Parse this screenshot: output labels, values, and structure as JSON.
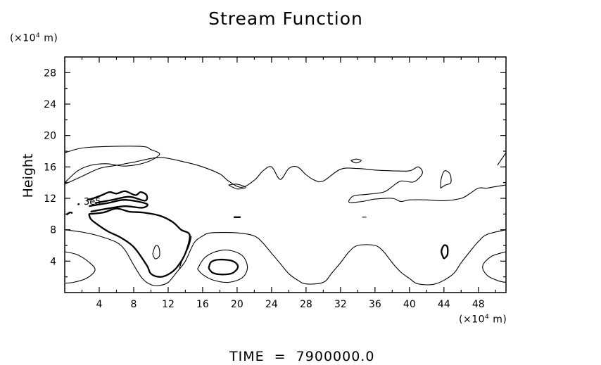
{
  "chart_data": {
    "type": "contour",
    "title": "Stream Function",
    "ylabel": "Height",
    "xlabel": "",
    "x_unit": {
      "prefix": "(×10",
      "exp": "4",
      "suffix": " m)"
    },
    "y_unit": {
      "prefix": "(×10",
      "exp": "4",
      "suffix": " m)"
    },
    "xlim": [
      0,
      51.2
    ],
    "ylim": [
      0,
      30
    ],
    "x_ticks": [
      4,
      8,
      12,
      16,
      20,
      24,
      28,
      32,
      36,
      40,
      44,
      48
    ],
    "y_ticks": [
      4,
      8,
      12,
      16,
      20,
      24,
      28
    ],
    "contour_label": "3e5",
    "contours": [
      {
        "bold": false,
        "points": [
          [
            0,
            17.8
          ],
          [
            2,
            18.4
          ],
          [
            5,
            18.6
          ],
          [
            9,
            18.6
          ],
          [
            10,
            18.2
          ],
          [
            11,
            17.6
          ],
          [
            9.5,
            16.6
          ],
          [
            7,
            16.1
          ],
          [
            5,
            16.4
          ],
          [
            3,
            16.2
          ],
          [
            1.5,
            15.5
          ],
          [
            0,
            14.0
          ]
        ]
      },
      {
        "bold": false,
        "points": [
          [
            0,
            13.8
          ],
          [
            2,
            14.8
          ],
          [
            4,
            15.8
          ],
          [
            6,
            16.2
          ],
          [
            8,
            16.6
          ],
          [
            11,
            17.2
          ],
          [
            14,
            16.6
          ],
          [
            16,
            16.0
          ],
          [
            18,
            15.1
          ],
          [
            19,
            14.2
          ],
          [
            20.5,
            13.4
          ],
          [
            22,
            14.3
          ],
          [
            23,
            15.5
          ],
          [
            24,
            16.0
          ],
          [
            25,
            14.4
          ],
          [
            26,
            15.8
          ],
          [
            27,
            16.0
          ],
          [
            28,
            15.0
          ],
          [
            29,
            14.3
          ],
          [
            30,
            14.2
          ],
          [
            32,
            15.7
          ],
          [
            34,
            15.8
          ],
          [
            36,
            15.6
          ],
          [
            38,
            15.5
          ],
          [
            40,
            15.5
          ],
          [
            41,
            16.0
          ],
          [
            41.5,
            15.2
          ],
          [
            40.5,
            14.1
          ],
          [
            39,
            14.2
          ],
          [
            38,
            13.5
          ],
          [
            37,
            12.8
          ],
          [
            35,
            12.5
          ],
          [
            33.5,
            12.3
          ],
          [
            33,
            11.5
          ],
          [
            34.5,
            11.6
          ],
          [
            36,
            11.9
          ],
          [
            38,
            12.0
          ],
          [
            39,
            11.6
          ],
          [
            40,
            11.8
          ],
          [
            42,
            11.8
          ],
          [
            44,
            11.7
          ],
          [
            46,
            12.0
          ],
          [
            47,
            12.6
          ],
          [
            48,
            13.3
          ],
          [
            49,
            13.3
          ],
          [
            50,
            13.5
          ],
          [
            51.2,
            13.7
          ]
        ]
      },
      {
        "bold": false,
        "points": [
          [
            19,
            13.7
          ],
          [
            20,
            13.2
          ],
          [
            21,
            13.4
          ],
          [
            20,
            13.8
          ],
          [
            19,
            13.7
          ]
        ]
      },
      {
        "bold": false,
        "points": [
          [
            33.2,
            16.8
          ],
          [
            33.8,
            16.5
          ],
          [
            34.4,
            16.8
          ],
          [
            33.8,
            17.0
          ],
          [
            33.2,
            16.8
          ]
        ]
      },
      {
        "bold": false,
        "points": [
          [
            43.6,
            13.3
          ],
          [
            43.7,
            14.6
          ],
          [
            44.1,
            15.5
          ],
          [
            44.7,
            15.1
          ],
          [
            44.8,
            14.0
          ],
          [
            44.2,
            13.7
          ],
          [
            43.6,
            13.3
          ]
        ]
      },
      {
        "bold": false,
        "points": [
          [
            50.2,
            16.2
          ],
          [
            51.2,
            17.8
          ]
        ]
      },
      {
        "bold": true,
        "points": [
          [
            3.5,
            11.4
          ],
          [
            5.5,
            11.8
          ],
          [
            7.5,
            12.2
          ],
          [
            9.3,
            11.7
          ],
          [
            9.5,
            12.4
          ],
          [
            8.8,
            12.8
          ],
          [
            8.2,
            12.4
          ],
          [
            7.0,
            12.9
          ],
          [
            6.0,
            12.6
          ],
          [
            5.2,
            12.8
          ],
          [
            4.3,
            12.4
          ],
          [
            3.3,
            12.0
          ],
          [
            2.6,
            11.8
          ]
        ]
      },
      {
        "bold": true,
        "points": [
          [
            2.8,
            11.0
          ],
          [
            5,
            11.4
          ],
          [
            7,
            11.8
          ],
          [
            9.5,
            11.3
          ],
          [
            9,
            10.8
          ],
          [
            7,
            11.0
          ],
          [
            5,
            10.7
          ],
          [
            3,
            10.3
          ]
        ]
      },
      {
        "bold": true,
        "points": [
          [
            2.8,
            10.0
          ],
          [
            4.5,
            10.2
          ],
          [
            6,
            10.7
          ],
          [
            7.5,
            10.3
          ],
          [
            9,
            10.2
          ],
          [
            11,
            9.8
          ],
          [
            12.5,
            9.0
          ],
          [
            13.5,
            8.0
          ],
          [
            14.5,
            7.3
          ],
          [
            14,
            5.0
          ],
          [
            13,
            3.2
          ],
          [
            12,
            2.3
          ],
          [
            11,
            2.0
          ],
          [
            10,
            2.4
          ],
          [
            9.5,
            3.5
          ],
          [
            8,
            5.8
          ],
          [
            6.5,
            7.0
          ],
          [
            5,
            7.8
          ],
          [
            3.5,
            8.9
          ],
          [
            3,
            9.4
          ],
          [
            2.8,
            10.0
          ]
        ]
      },
      {
        "bold": false,
        "points": [
          [
            0,
            8.0
          ],
          [
            2,
            7.7
          ],
          [
            4,
            7.2
          ],
          [
            6,
            6.4
          ],
          [
            7,
            5.4
          ],
          [
            8,
            3.5
          ],
          [
            9,
            1.8
          ],
          [
            10,
            1.0
          ],
          [
            11,
            0.9
          ],
          [
            12,
            1.3
          ],
          [
            13,
            2.6
          ],
          [
            14,
            4.0
          ],
          [
            15,
            6.3
          ],
          [
            16,
            7.2
          ],
          [
            17,
            7.6
          ],
          [
            20,
            7.6
          ],
          [
            22,
            7.2
          ],
          [
            23,
            6.3
          ],
          [
            24,
            5.0
          ],
          [
            25,
            3.7
          ],
          [
            26,
            2.4
          ],
          [
            27,
            1.6
          ],
          [
            28,
            1.1
          ],
          [
            30,
            1.3
          ],
          [
            31,
            2.5
          ],
          [
            32,
            3.8
          ],
          [
            33,
            5.2
          ],
          [
            34,
            6.0
          ],
          [
            36,
            6.0
          ],
          [
            37,
            5.2
          ],
          [
            38,
            3.8
          ],
          [
            39,
            2.6
          ],
          [
            40,
            1.8
          ],
          [
            41,
            1.1
          ],
          [
            43,
            1.1
          ],
          [
            45,
            2.3
          ],
          [
            46,
            3.8
          ],
          [
            47,
            5.2
          ],
          [
            48,
            6.5
          ],
          [
            49,
            7.4
          ],
          [
            51.2,
            8.0
          ]
        ]
      },
      {
        "bold": false,
        "points": [
          [
            10.2,
            4.9
          ],
          [
            10.5,
            5.9
          ],
          [
            10.9,
            5.8
          ],
          [
            11.0,
            4.7
          ],
          [
            10.5,
            4.3
          ],
          [
            10.2,
            4.9
          ]
        ]
      },
      {
        "bold": false,
        "points": [
          [
            0,
            5.2
          ],
          [
            1.5,
            4.8
          ],
          [
            3,
            3.7
          ],
          [
            3.5,
            2.8
          ],
          [
            2.5,
            1.8
          ],
          [
            1,
            1.3
          ],
          [
            0,
            1.2
          ]
        ]
      },
      {
        "bold": false,
        "points": [
          [
            51.2,
            5.2
          ],
          [
            49.5,
            4.6
          ],
          [
            48.5,
            3.4
          ],
          [
            49,
            2.2
          ],
          [
            50.3,
            1.5
          ],
          [
            51.2,
            1.3
          ]
        ]
      },
      {
        "bold": false,
        "points": [
          [
            14.7,
            7.2
          ],
          [
            14.4,
            5.9
          ],
          [
            13.7,
            4.3
          ],
          [
            13.3,
            3.1
          ]
        ]
      },
      {
        "bold": false,
        "points": [
          [
            15.4,
            3.0
          ],
          [
            16.2,
            4.4
          ],
          [
            17.5,
            5.2
          ],
          [
            19,
            5.4
          ],
          [
            20.6,
            4.7
          ],
          [
            21.2,
            3.2
          ],
          [
            20.6,
            1.9
          ],
          [
            19,
            1.3
          ],
          [
            17.2,
            1.6
          ],
          [
            16.0,
            2.3
          ],
          [
            15.4,
            3.0
          ]
        ]
      },
      {
        "bold": true,
        "points": [
          [
            16.7,
            3.1
          ],
          [
            17.0,
            3.9
          ],
          [
            18.0,
            4.2
          ],
          [
            19.5,
            4.0
          ],
          [
            20.1,
            3.3
          ],
          [
            19.5,
            2.5
          ],
          [
            18.3,
            2.3
          ],
          [
            17.2,
            2.5
          ],
          [
            16.7,
            3.1
          ]
        ]
      },
      {
        "bold": true,
        "points": [
          [
            44.0,
            4.3
          ],
          [
            43.7,
            5.2
          ],
          [
            44.0,
            6.0
          ],
          [
            44.4,
            5.8
          ],
          [
            44.4,
            4.8
          ],
          [
            44.0,
            4.3
          ]
        ]
      },
      {
        "bold": true,
        "points": [
          [
            0.2,
            9.9
          ],
          [
            0.6,
            10.2
          ],
          [
            0.9,
            10.1
          ]
        ]
      },
      {
        "bold": true,
        "points": [
          [
            19.6,
            9.6
          ],
          [
            20.4,
            9.6
          ]
        ]
      },
      {
        "bold": true,
        "points": [
          [
            1.5,
            11.2
          ],
          [
            1.7,
            11.3
          ]
        ]
      },
      {
        "bold": false,
        "points": [
          [
            34.5,
            9.6
          ],
          [
            35.0,
            9.6
          ]
        ]
      }
    ]
  },
  "footer": {
    "time_label": "TIME  =  7900000.0"
  }
}
